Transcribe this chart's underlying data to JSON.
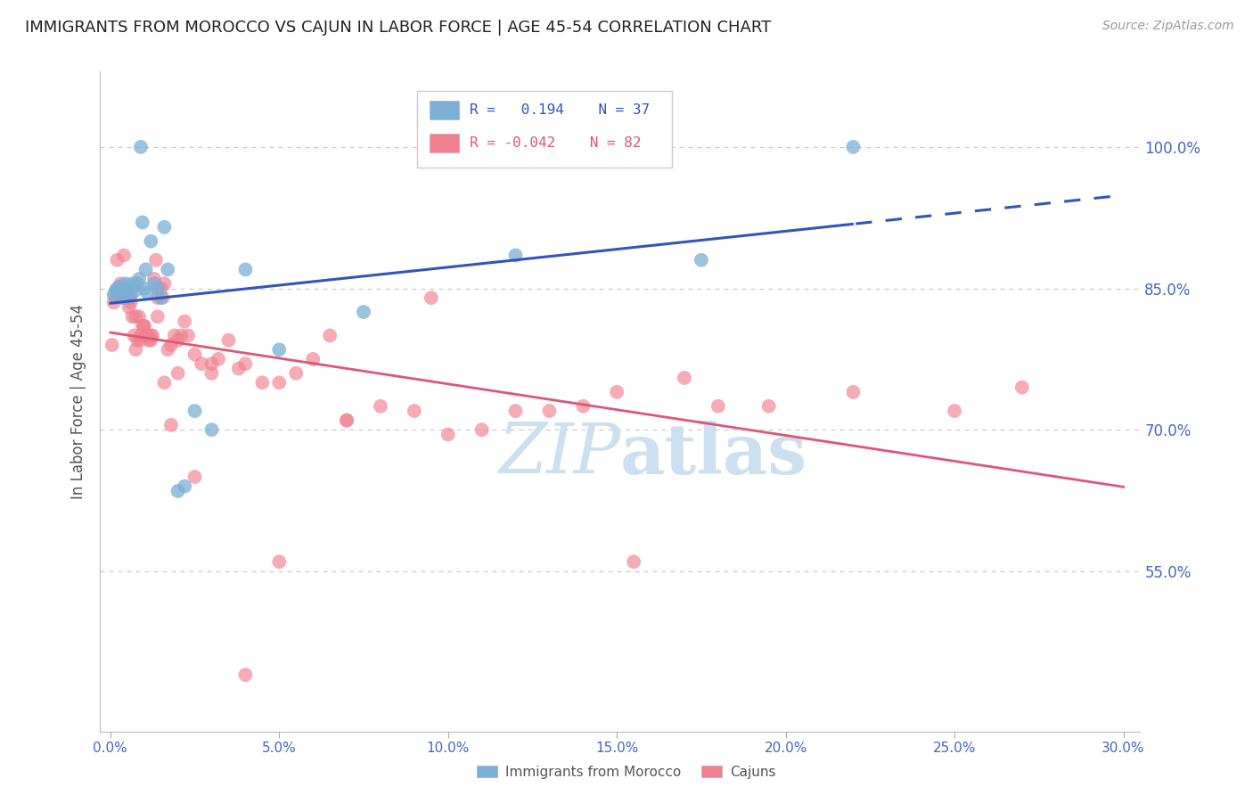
{
  "title": "IMMIGRANTS FROM MOROCCO VS CAJUN IN LABOR FORCE | AGE 45-54 CORRELATION CHART",
  "source": "Source: ZipAtlas.com",
  "ylabel": "In Labor Force | Age 45-54",
  "xlim": [
    -0.3,
    30.5
  ],
  "ylim": [
    0.38,
    1.08
  ],
  "yticks": [
    0.55,
    0.7,
    0.85,
    1.0
  ],
  "ytick_labels": [
    "55.0%",
    "70.0%",
    "85.0%",
    "100.0%"
  ],
  "xticks": [
    0.0,
    5.0,
    10.0,
    15.0,
    20.0,
    25.0,
    30.0
  ],
  "xtick_labels": [
    "0.0%",
    "5.0%",
    "10.0%",
    "15.0%",
    "20.0%",
    "25.0%",
    "30.0%"
  ],
  "gridline_color": "#cccccc",
  "background_color": "#ffffff",
  "blue_color": "#7bafd4",
  "pink_color": "#f08090",
  "blue_line_color": "#3355bb",
  "pink_line_color": "#e05575",
  "axis_color": "#4466bb",
  "title_color": "#222222",
  "watermark_color": "#cce0f0",
  "morocco_x": [
    0.1,
    0.15,
    0.2,
    0.25,
    0.3,
    0.35,
    0.4,
    0.45,
    0.5,
    0.55,
    0.6,
    0.65,
    0.7,
    0.75,
    0.8,
    0.85,
    0.9,
    0.95,
    1.0,
    1.05,
    1.1,
    1.2,
    1.3,
    1.4,
    1.5,
    1.6,
    1.7,
    2.0,
    2.2,
    2.5,
    3.0,
    4.0,
    5.0,
    7.5,
    12.0,
    17.5,
    22.0
  ],
  "morocco_y": [
    0.843,
    0.847,
    0.85,
    0.848,
    0.852,
    0.845,
    0.84,
    0.855,
    0.848,
    0.85,
    0.842,
    0.855,
    0.852,
    0.848,
    0.855,
    0.86,
    1.0,
    0.92,
    0.85,
    0.87,
    0.845,
    0.9,
    0.855,
    0.85,
    0.84,
    0.915,
    0.87,
    0.635,
    0.64,
    0.72,
    0.7,
    0.87,
    0.785,
    0.825,
    0.885,
    0.88,
    1.0
  ],
  "cajun_x": [
    0.05,
    0.1,
    0.15,
    0.2,
    0.3,
    0.35,
    0.4,
    0.5,
    0.55,
    0.6,
    0.65,
    0.7,
    0.75,
    0.8,
    0.85,
    0.9,
    0.95,
    1.0,
    1.05,
    1.1,
    1.15,
    1.2,
    1.25,
    1.3,
    1.35,
    1.4,
    1.5,
    1.55,
    1.6,
    1.7,
    1.8,
    1.9,
    2.0,
    2.1,
    2.2,
    2.3,
    2.5,
    2.7,
    3.0,
    3.2,
    3.5,
    3.8,
    4.0,
    4.5,
    5.0,
    5.5,
    6.0,
    6.5,
    7.0,
    8.0,
    9.0,
    9.5,
    10.0,
    11.0,
    12.0,
    13.0,
    14.0,
    15.0,
    17.0,
    18.0,
    19.5,
    22.0,
    25.0,
    27.0,
    0.3,
    0.5,
    0.6,
    0.75,
    0.9,
    1.0,
    1.1,
    1.2,
    1.4,
    1.6,
    1.8,
    2.0,
    2.5,
    3.0,
    4.0,
    5.0,
    7.0,
    15.5
  ],
  "cajun_y": [
    0.79,
    0.835,
    0.84,
    0.88,
    0.855,
    0.84,
    0.885,
    0.85,
    0.83,
    0.84,
    0.82,
    0.8,
    0.82,
    0.795,
    0.82,
    0.8,
    0.81,
    0.81,
    0.8,
    0.8,
    0.795,
    0.8,
    0.8,
    0.86,
    0.88,
    0.84,
    0.85,
    0.84,
    0.855,
    0.785,
    0.79,
    0.8,
    0.795,
    0.8,
    0.815,
    0.8,
    0.78,
    0.77,
    0.76,
    0.775,
    0.795,
    0.765,
    0.77,
    0.75,
    0.75,
    0.76,
    0.775,
    0.8,
    0.71,
    0.725,
    0.72,
    0.84,
    0.695,
    0.7,
    0.72,
    0.72,
    0.725,
    0.74,
    0.755,
    0.725,
    0.725,
    0.74,
    0.72,
    0.745,
    0.845,
    0.84,
    0.835,
    0.785,
    0.795,
    0.81,
    0.8,
    0.795,
    0.82,
    0.75,
    0.705,
    0.76,
    0.65,
    0.77,
    0.44,
    0.56,
    0.71,
    0.56
  ]
}
